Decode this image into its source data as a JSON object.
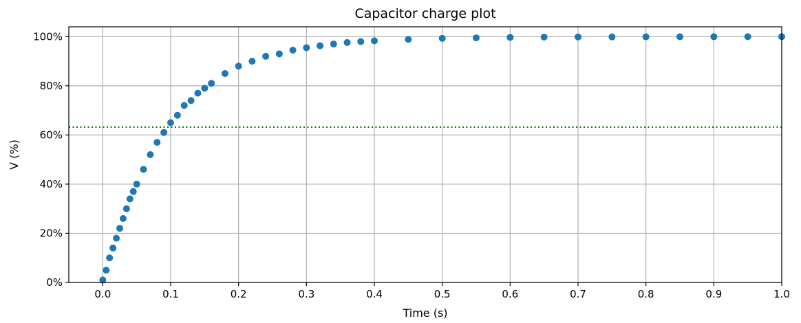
{
  "chart_data": {
    "type": "scatter",
    "title": "Capacitor charge plot",
    "xlabel": "Time (s)",
    "ylabel": "V (%)",
    "xlim": [
      -0.05,
      1.0
    ],
    "ylim": [
      0,
      104
    ],
    "xticks": [
      0.0,
      0.1,
      0.2,
      0.3,
      0.4,
      0.5,
      0.6,
      0.7,
      0.8,
      0.9,
      1.0
    ],
    "xtick_labels": [
      "0.0",
      "0.1",
      "0.2",
      "0.3",
      "0.4",
      "0.5",
      "0.6",
      "0.7",
      "0.8",
      "0.9",
      "1.0"
    ],
    "yticks": [
      0,
      20,
      40,
      60,
      80,
      100
    ],
    "ytick_labels": [
      "0%",
      "20%",
      "40%",
      "60%",
      "80%",
      "100%"
    ],
    "grid": true,
    "marker_color": "#1f77b4",
    "reference_line": {
      "y": 63.2,
      "style": "dotted",
      "color": "#008000"
    },
    "series": [
      {
        "x": [
          0.0,
          0.005,
          0.01,
          0.015,
          0.02,
          0.025,
          0.03,
          0.035,
          0.04,
          0.045,
          0.05,
          0.06,
          0.07,
          0.08,
          0.09,
          0.1,
          0.11,
          0.12,
          0.13,
          0.14,
          0.15,
          0.16,
          0.18,
          0.2,
          0.22,
          0.24,
          0.26,
          0.28,
          0.3,
          0.32,
          0.34,
          0.36,
          0.38,
          0.4,
          0.45,
          0.5,
          0.55,
          0.6,
          0.65,
          0.7,
          0.75,
          0.8,
          0.85,
          0.9,
          0.95,
          1.0
        ],
        "y": [
          1,
          5,
          10,
          14,
          18,
          22,
          26,
          30,
          34,
          37,
          40,
          46,
          52,
          57,
          61,
          65,
          68,
          72,
          74,
          77,
          79,
          81,
          85,
          88,
          90,
          92,
          93,
          94.5,
          95.5,
          96.3,
          97,
          97.6,
          98,
          98.3,
          98.9,
          99.3,
          99.5,
          99.7,
          99.8,
          99.85,
          99.9,
          99.93,
          99.95,
          99.97,
          99.98,
          99.99
        ]
      }
    ]
  }
}
